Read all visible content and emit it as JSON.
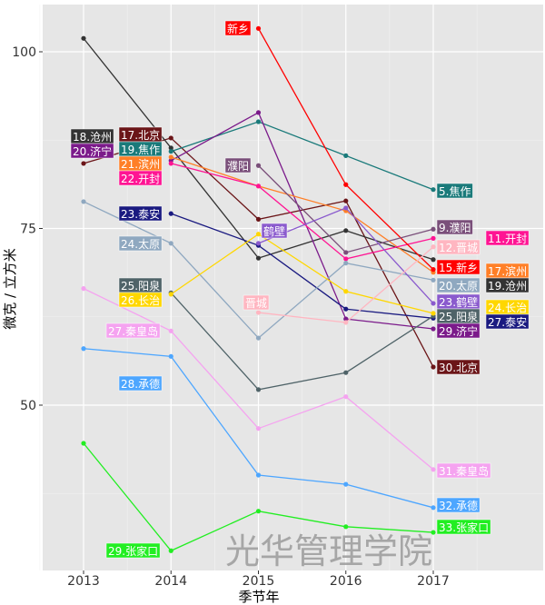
{
  "chart_data": {
    "type": "line",
    "xlabel": "季节年",
    "ylabel": "微克 / 立方米",
    "x": [
      2013,
      2014,
      2015,
      2016,
      2017
    ],
    "xlim": [
      2012.5,
      2018.3
    ],
    "ylim": [
      27,
      107
    ],
    "yticks": [
      50,
      75,
      100
    ],
    "grid": true,
    "watermark": "光华管理学院",
    "series": [
      {
        "name": "北京",
        "color": "#6b1518",
        "values": [
          84.2,
          87.8,
          76.3,
          78.9,
          55.4
        ]
      },
      {
        "name": "沧州",
        "color": "#333333",
        "values": [
          101.9,
          86.4,
          70.8,
          74.7,
          70.6
        ]
      },
      {
        "name": "焦作",
        "color": "#1a7a7a",
        "values": [
          null,
          85.9,
          90.1,
          85.3,
          80.5
        ]
      },
      {
        "name": "济宁",
        "color": "#7b1a8a",
        "values": [
          null,
          84.6,
          91.4,
          62.2,
          60.8
        ]
      },
      {
        "name": "滨州",
        "color": "#ff7f27",
        "values": [
          null,
          85.1,
          81.0,
          77.5,
          68.8
        ]
      },
      {
        "name": "开封",
        "color": "#ff1493",
        "values": [
          null,
          84.2,
          81.0,
          70.7,
          73.6
        ]
      },
      {
        "name": "泰安",
        "color": "#1a1a80",
        "values": [
          null,
          77.1,
          72.6,
          63.6,
          62.3
        ]
      },
      {
        "name": "太原",
        "color": "#8fa8c0",
        "values": [
          78.8,
          72.9,
          59.5,
          70.1,
          67.7
        ]
      },
      {
        "name": "阳泉",
        "color": "#4f6368",
        "values": [
          null,
          65.9,
          52.2,
          54.6,
          62.6
        ]
      },
      {
        "name": "长治",
        "color": "#ffd700",
        "values": [
          null,
          65.7,
          74.2,
          66.1,
          63.0
        ]
      },
      {
        "name": "秦皇岛",
        "color": "#f5a3f0",
        "values": [
          66.5,
          60.5,
          46.7,
          51.2,
          40.9
        ]
      },
      {
        "name": "承德",
        "color": "#4da6ff",
        "values": [
          58.0,
          56.9,
          40.1,
          38.8,
          35.5
        ]
      },
      {
        "name": "张家口",
        "color": "#22ee22",
        "values": [
          44.6,
          29.4,
          35.0,
          32.8,
          32.0
        ]
      },
      {
        "name": "新乡",
        "color": "#ff0000",
        "values": [
          null,
          null,
          103.3,
          81.2,
          69.2
        ]
      },
      {
        "name": "濮阳",
        "color": "#7a4f7a",
        "values": [
          null,
          null,
          83.9,
          71.6,
          74.9
        ]
      },
      {
        "name": "鹤壁",
        "color": "#8a5acd",
        "values": [
          null,
          null,
          72.9,
          77.9,
          64.4
        ]
      },
      {
        "name": "晋城",
        "color": "#ffb6c1",
        "values": [
          null,
          null,
          63.1,
          61.7,
          72.4
        ]
      }
    ],
    "labels": [
      {
        "text": "18.沧州",
        "color": "#333333"
      },
      {
        "text": "17.北京",
        "color": "#6b1518"
      },
      {
        "text": "20.济宁",
        "color": "#7b1a8a"
      },
      {
        "text": "19.焦作",
        "color": "#1a7a7a"
      },
      {
        "text": "21.滨州",
        "color": "#ff7f27"
      },
      {
        "text": "22.开封",
        "color": "#ff1493"
      },
      {
        "text": "23.泰安",
        "color": "#1a1a80"
      },
      {
        "text": "24.太原",
        "color": "#8fa8c0"
      },
      {
        "text": "25.阳泉",
        "color": "#4f6368"
      },
      {
        "text": "26.长治",
        "color": "#ffd700"
      },
      {
        "text": "27.秦皇岛",
        "color": "#f5a3f0"
      },
      {
        "text": "28.承德",
        "color": "#4da6ff"
      },
      {
        "text": "29.张家口",
        "color": "#22ee22"
      },
      {
        "text": "新乡",
        "color": "#ff0000"
      },
      {
        "text": "濮阳",
        "color": "#7a4f7a"
      },
      {
        "text": "鹤壁",
        "color": "#8a5acd"
      },
      {
        "text": "晋城",
        "color": "#ffb6c1"
      },
      {
        "text": "5.焦作",
        "color": "#1a7a7a"
      },
      {
        "text": "9.濮阳",
        "color": "#7a4f7a"
      },
      {
        "text": "11.开封",
        "color": "#ff1493"
      },
      {
        "text": "12.晋城",
        "color": "#ffb6c1"
      },
      {
        "text": "15.新乡",
        "color": "#ff0000"
      },
      {
        "text": "17.滨州",
        "color": "#ff7f27"
      },
      {
        "text": "20.太原",
        "color": "#8fa8c0"
      },
      {
        "text": "19.沧州",
        "color": "#333333"
      },
      {
        "text": "23.鹤壁",
        "color": "#8a5acd"
      },
      {
        "text": "24.长治",
        "color": "#ffd700"
      },
      {
        "text": "25.阳泉",
        "color": "#4f6368"
      },
      {
        "text": "27.泰安",
        "color": "#1a1a80"
      },
      {
        "text": "29.济宁",
        "color": "#7b1a8a"
      },
      {
        "text": "30.北京",
        "color": "#6b1518"
      },
      {
        "text": "31.秦皇岛",
        "color": "#f5a3f0"
      },
      {
        "text": "32.承德",
        "color": "#4da6ff"
      },
      {
        "text": "33.张家口",
        "color": "#22ee22"
      }
    ]
  }
}
